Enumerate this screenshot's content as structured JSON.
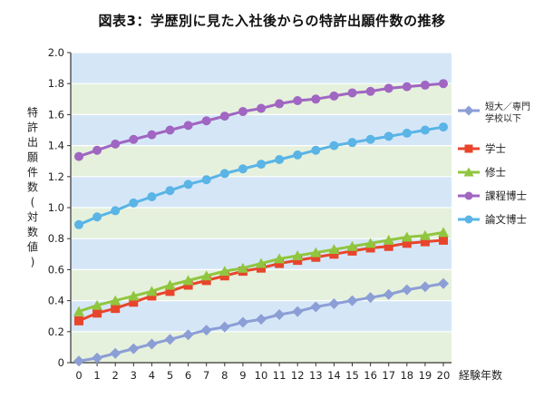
{
  "chart_data": {
    "type": "line",
    "title": "図表3：学歴別に見た入社後からの特許出願件数の推移",
    "xlabel": "経験年数",
    "ylabel": "特許出願件数(対数値)",
    "x": [
      0,
      1,
      2,
      3,
      4,
      5,
      6,
      7,
      8,
      9,
      10,
      11,
      12,
      13,
      14,
      15,
      16,
      17,
      18,
      19,
      20
    ],
    "ylim": [
      0,
      2.0
    ],
    "yticks": [
      "0",
      "0.2",
      "0.4",
      "0.6",
      "0.8",
      "1.0",
      "1.2",
      "1.4",
      "1.6",
      "1.8",
      "2.0"
    ],
    "xticks": [
      "0",
      "1",
      "2",
      "3",
      "4",
      "5",
      "6",
      "7",
      "8",
      "9",
      "10",
      "11",
      "12",
      "13",
      "14",
      "15",
      "16",
      "17",
      "18",
      "19",
      "20"
    ],
    "grid": true,
    "legend_position": "right",
    "series": [
      {
        "name": "短大／専門学校以下",
        "name_lines": [
          "短大／専門",
          "学校以下"
        ],
        "color": "#8c9ed6",
        "marker": "diamond",
        "values": [
          0.01,
          0.03,
          0.06,
          0.09,
          0.12,
          0.15,
          0.18,
          0.21,
          0.23,
          0.26,
          0.28,
          0.31,
          0.33,
          0.36,
          0.38,
          0.4,
          0.42,
          0.44,
          0.47,
          0.49,
          0.51
        ]
      },
      {
        "name": "学士",
        "name_lines": [
          "学士"
        ],
        "color": "#e8452c",
        "marker": "square",
        "values": [
          0.27,
          0.32,
          0.35,
          0.39,
          0.43,
          0.46,
          0.5,
          0.53,
          0.56,
          0.59,
          0.61,
          0.64,
          0.66,
          0.68,
          0.7,
          0.72,
          0.74,
          0.75,
          0.77,
          0.78,
          0.79
        ]
      },
      {
        "name": "修士",
        "name_lines": [
          "修士"
        ],
        "color": "#90c63e",
        "marker": "triangle",
        "values": [
          0.33,
          0.37,
          0.4,
          0.43,
          0.46,
          0.5,
          0.53,
          0.56,
          0.59,
          0.61,
          0.64,
          0.67,
          0.69,
          0.71,
          0.73,
          0.75,
          0.77,
          0.79,
          0.81,
          0.82,
          0.84
        ]
      },
      {
        "name": "課程博士",
        "name_lines": [
          "課程博士"
        ],
        "color": "#a066c2",
        "marker": "circle",
        "values": [
          1.33,
          1.37,
          1.41,
          1.44,
          1.47,
          1.5,
          1.53,
          1.56,
          1.59,
          1.62,
          1.64,
          1.67,
          1.69,
          1.7,
          1.72,
          1.74,
          1.75,
          1.77,
          1.78,
          1.79,
          1.8
        ]
      },
      {
        "name": "論文博士",
        "name_lines": [
          "論文博士"
        ],
        "color": "#5ab4e6",
        "marker": "circle",
        "values": [
          0.89,
          0.94,
          0.98,
          1.03,
          1.07,
          1.11,
          1.15,
          1.18,
          1.22,
          1.25,
          1.28,
          1.31,
          1.34,
          1.37,
          1.4,
          1.42,
          1.44,
          1.46,
          1.48,
          1.5,
          1.52
        ]
      }
    ],
    "band_colors": [
      "#e5f1dc",
      "#d5e7f7"
    ]
  }
}
